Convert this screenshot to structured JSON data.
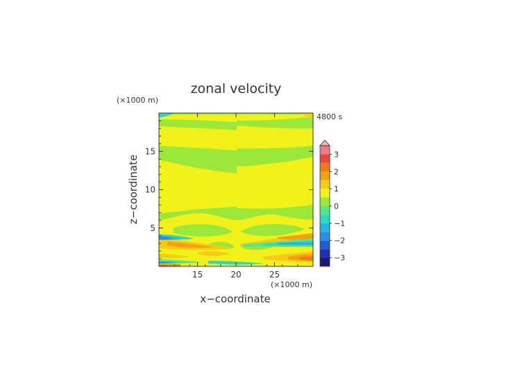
{
  "chart_data": {
    "type": "heatmap",
    "title": "zonal velocity",
    "time_label": "4800 s",
    "xlabel": "x−coordinate",
    "ylabel": "z−coordinate",
    "x_unit": "(×1000 m)",
    "y_unit": "(×1000 m)",
    "xlim": [
      10,
      30
    ],
    "ylim": [
      0,
      20
    ],
    "x_ticks": [
      15,
      20,
      25
    ],
    "y_ticks": [
      5,
      10,
      15
    ],
    "colorbar": {
      "levels": [
        -3.5,
        -3,
        -2.5,
        -2,
        -1.5,
        -1,
        -0.5,
        0,
        0.5,
        1,
        1.5,
        2,
        2.5,
        3,
        3.5
      ],
      "colors": [
        "#1a1a7a",
        "#1f2fb8",
        "#1f5ce0",
        "#2a8ce8",
        "#27b4e0",
        "#2ed9c0",
        "#55e88a",
        "#9ce83a",
        "#f2f21a",
        "#f7cc14",
        "#f5a010",
        "#f07a18",
        "#ee4438",
        "#f07a88",
        "#f8b4b4"
      ],
      "tick_labels": [
        "3",
        "2",
        "1",
        "0",
        "−1",
        "−2",
        "−3"
      ],
      "tick_values": [
        3,
        2,
        1,
        0,
        -1,
        -2,
        -3
      ],
      "extend": "max"
    }
  }
}
